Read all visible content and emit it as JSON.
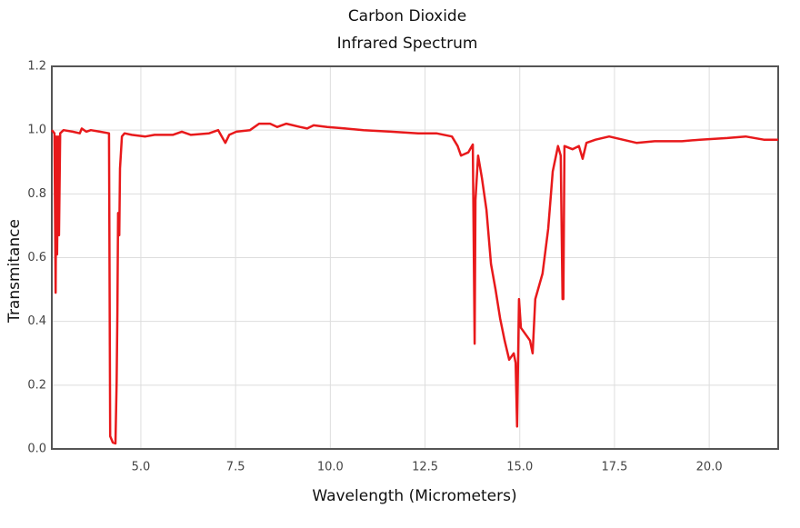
{
  "chart_data": {
    "type": "line",
    "title": "Carbon Dioxide",
    "subtitle": "Infrared Spectrum",
    "x_label": "Wavelength (Micrometers)",
    "y_label": "Transmitance",
    "xlim": [
      2.65,
      21.82
    ],
    "ylim": [
      0,
      1.2
    ],
    "xticks": [
      {
        "value": 5,
        "label": "5.0"
      },
      7.5,
      {
        "value": 10,
        "label": "10.0"
      },
      12.5,
      {
        "value": 15,
        "label": "15.0"
      },
      17.5,
      {
        "value": 20,
        "label": "20.0"
      }
    ],
    "yticks": [
      {
        "value": 0,
        "label": "0.0"
      },
      0.2,
      0.4,
      0.6,
      0.8,
      {
        "value": 1,
        "label": "1.0"
      },
      1.2
    ],
    "grid": true,
    "series": [
      {
        "color": "#e8191b",
        "x": [
          2.65,
          2.72,
          2.75,
          2.77,
          2.79,
          2.82,
          2.84,
          2.87,
          2.96,
          3.2,
          3.39,
          3.44,
          3.56,
          3.68,
          3.92,
          4.16,
          4.19,
          4.26,
          4.33,
          4.36,
          4.38,
          4.4,
          4.43,
          4.45,
          4.5,
          4.57,
          4.76,
          5.12,
          5.36,
          5.84,
          6.08,
          6.32,
          6.8,
          7.04,
          7.23,
          7.33,
          7.52,
          7.88,
          8.12,
          8.41,
          8.6,
          8.84,
          9.2,
          9.39,
          9.56,
          9.92,
          10.4,
          10.88,
          11.6,
          12.32,
          12.8,
          13.21,
          13.36,
          13.45,
          13.64,
          13.76,
          13.81,
          13.83,
          13.9,
          14.0,
          14.12,
          14.24,
          14.36,
          14.48,
          14.6,
          14.72,
          14.84,
          14.89,
          14.93,
          14.98,
          15.03,
          15.15,
          15.27,
          15.34,
          15.41,
          15.48,
          15.6,
          15.75,
          15.87,
          16.01,
          16.08,
          16.13,
          16.15,
          16.18,
          16.39,
          16.56,
          16.66,
          16.76,
          17.0,
          17.36,
          17.72,
          18.08,
          18.56,
          19.28,
          19.76,
          20.48,
          20.96,
          21.44,
          21.82
        ],
        "values": [
          1.0,
          0.99,
          0.49,
          0.98,
          0.61,
          0.98,
          0.67,
          0.99,
          1.0,
          0.995,
          0.99,
          1.005,
          0.995,
          1.0,
          0.995,
          0.99,
          0.04,
          0.02,
          0.017,
          0.21,
          0.42,
          0.74,
          0.67,
          0.88,
          0.98,
          0.99,
          0.985,
          0.98,
          0.985,
          0.985,
          0.995,
          0.985,
          0.99,
          1.0,
          0.96,
          0.985,
          0.995,
          1.0,
          1.02,
          1.02,
          1.01,
          1.02,
          1.01,
          1.005,
          1.015,
          1.01,
          1.005,
          1.0,
          0.995,
          0.99,
          0.99,
          0.98,
          0.95,
          0.92,
          0.93,
          0.955,
          0.33,
          0.78,
          0.92,
          0.85,
          0.75,
          0.58,
          0.5,
          0.41,
          0.34,
          0.28,
          0.3,
          0.27,
          0.07,
          0.47,
          0.38,
          0.36,
          0.34,
          0.3,
          0.47,
          0.5,
          0.55,
          0.69,
          0.87,
          0.95,
          0.92,
          0.47,
          0.47,
          0.95,
          0.94,
          0.95,
          0.91,
          0.96,
          0.97,
          0.98,
          0.97,
          0.96,
          0.965,
          0.965,
          0.97,
          0.975,
          0.98,
          0.97,
          0.97
        ]
      }
    ]
  }
}
